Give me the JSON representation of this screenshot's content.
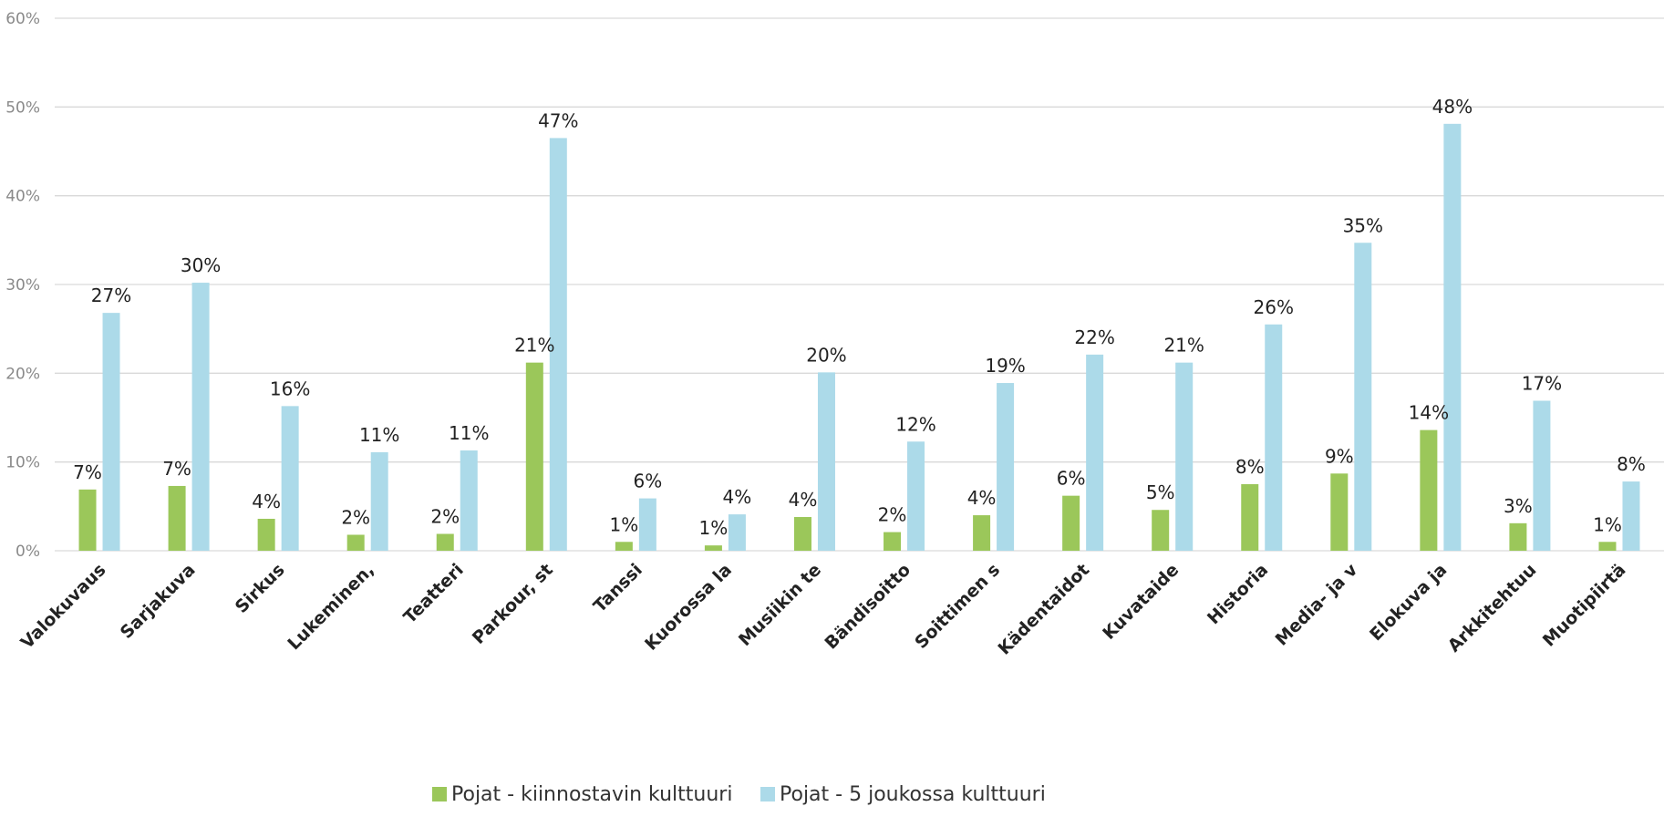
{
  "chart_data": {
    "type": "bar",
    "categories": [
      "Valokuvaus",
      "Sarjakuva",
      "Sirkus",
      "Lukeminen,",
      "Teatteri",
      "Parkour, st",
      "Tanssi",
      "Kuorossa la",
      "Musiikin te",
      "Bändisoitto",
      "Soittimen s",
      "Kädentaidot",
      "Kuvataide",
      "Historia",
      "Media- ja v",
      "Elokuva ja",
      "Arkkitehtuu",
      "Muotipiirtä"
    ],
    "series": [
      {
        "name": "Pojat - kiinnostavin kulttuuri",
        "color": "#9bc75a",
        "values": [
          6.9,
          7.3,
          3.6,
          1.8,
          1.9,
          21.2,
          1.0,
          0.6,
          3.8,
          2.1,
          4.0,
          6.2,
          4.6,
          7.5,
          8.7,
          13.6,
          3.1,
          1.0
        ],
        "labels": [
          "7%",
          "7%",
          "4%",
          "2%",
          "2%",
          "21%",
          "1%",
          "1%",
          "4%",
          "2%",
          "4%",
          "6%",
          "5%",
          "8%",
          "9%",
          "14%",
          "3%",
          "1%"
        ]
      },
      {
        "name": "Pojat - 5 joukossa kulttuuri",
        "color": "#acdae9",
        "values": [
          26.8,
          30.2,
          16.3,
          11.1,
          11.3,
          46.5,
          5.9,
          4.1,
          20.1,
          12.3,
          18.9,
          22.1,
          21.2,
          25.5,
          34.7,
          48.1,
          16.9,
          7.8
        ],
        "labels": [
          "27%",
          "30%",
          "16%",
          "11%",
          "11%",
          "47%",
          "6%",
          "4%",
          "20%",
          "12%",
          "19%",
          "22%",
          "21%",
          "26%",
          "35%",
          "48%",
          "17%",
          "8%"
        ]
      }
    ],
    "yticks": [
      "0%",
      "10%",
      "20%",
      "30%",
      "40%",
      "50%",
      "60%"
    ],
    "ylim": [
      0,
      60
    ],
    "grid": true,
    "legend": "bottom"
  }
}
